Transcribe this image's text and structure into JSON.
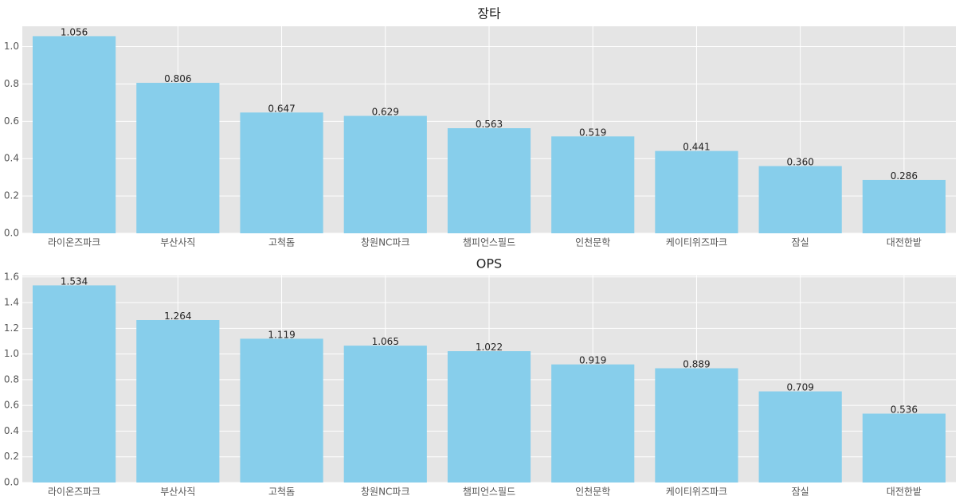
{
  "chart_data": [
    {
      "type": "bar",
      "title": "장타",
      "categories": [
        "라이온즈파크",
        "부산사직",
        "고척돔",
        "창원NC파크",
        "챔피언스필드",
        "인천문학",
        "케이티위즈파크",
        "잠실",
        "대전한밭"
      ],
      "values": [
        1.056,
        0.806,
        0.647,
        0.629,
        0.563,
        0.519,
        0.441,
        0.36,
        0.286
      ],
      "value_labels": [
        "1.056",
        "0.806",
        "0.647",
        "0.629",
        "0.563",
        "0.519",
        "0.441",
        "0.360",
        "0.286"
      ],
      "color": "#87ceeb",
      "ylim": [
        0,
        1.109
      ],
      "yticks": [
        {
          "value": 0,
          "label": "0.0"
        },
        0.2,
        0.4,
        0.6,
        0.8,
        {
          "value": 1,
          "label": "1.0"
        }
      ],
      "grid": true
    },
    {
      "type": "bar",
      "title": "OPS",
      "categories": [
        "라이온즈파크",
        "부산사직",
        "고척돔",
        "창원NC파크",
        "챔피언스필드",
        "인천문학",
        "케이티위즈파크",
        "잠실",
        "대전한밭"
      ],
      "values": [
        1.534,
        1.264,
        1.119,
        1.065,
        1.022,
        0.919,
        0.889,
        0.709,
        0.536
      ],
      "value_labels": [
        "1.534",
        "1.264",
        "1.119",
        "1.065",
        "1.022",
        "0.919",
        "0.889",
        "0.709",
        "0.536"
      ],
      "color": "#87ceeb",
      "ylim": [
        0,
        1.611
      ],
      "yticks": [
        {
          "value": 0,
          "label": "0.0"
        },
        0.2,
        0.4,
        0.6,
        0.8,
        {
          "value": 1,
          "label": "1.0"
        },
        1.2,
        1.4,
        1.6
      ],
      "grid": true
    }
  ]
}
